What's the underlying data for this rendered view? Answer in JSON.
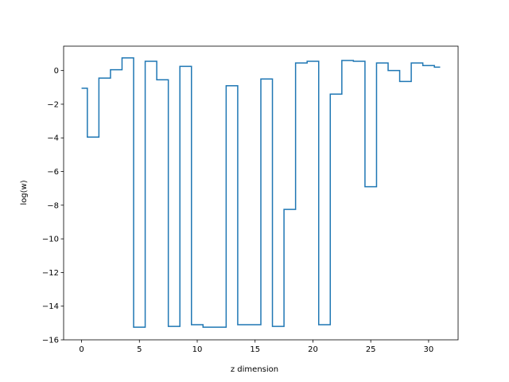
{
  "chart_data": {
    "type": "line",
    "drawstyle": "steps-mid",
    "xlabel": "z dimension",
    "ylabel": "log(w)",
    "xlim": [
      -1.55,
      32.55
    ],
    "ylim": [
      -16.0,
      1.45
    ],
    "xticks": [
      0,
      5,
      10,
      15,
      20,
      25,
      30
    ],
    "yticks": [
      0,
      -2,
      -4,
      -6,
      -8,
      -10,
      -12,
      -14,
      -16
    ],
    "grid": false,
    "color": "#1f77b4",
    "series": [
      {
        "x": [
          0,
          1,
          2,
          3,
          4,
          5,
          6,
          7,
          8,
          9,
          10,
          11,
          12,
          13,
          14,
          15,
          16,
          17,
          18,
          19,
          20,
          21,
          22,
          23,
          24,
          25,
          26,
          27,
          28,
          29,
          30,
          31
        ],
        "values": [
          -1.05,
          -3.95,
          -0.45,
          0.05,
          0.75,
          -15.25,
          0.55,
          -0.55,
          -15.2,
          0.25,
          -15.1,
          -15.25,
          -15.25,
          -0.9,
          -15.1,
          -15.1,
          -0.5,
          -15.2,
          -8.25,
          0.45,
          0.55,
          -15.1,
          -1.4,
          0.6,
          0.55,
          -6.9,
          0.45,
          0.0,
          -0.65,
          0.45,
          0.3,
          0.2
        ]
      }
    ]
  }
}
